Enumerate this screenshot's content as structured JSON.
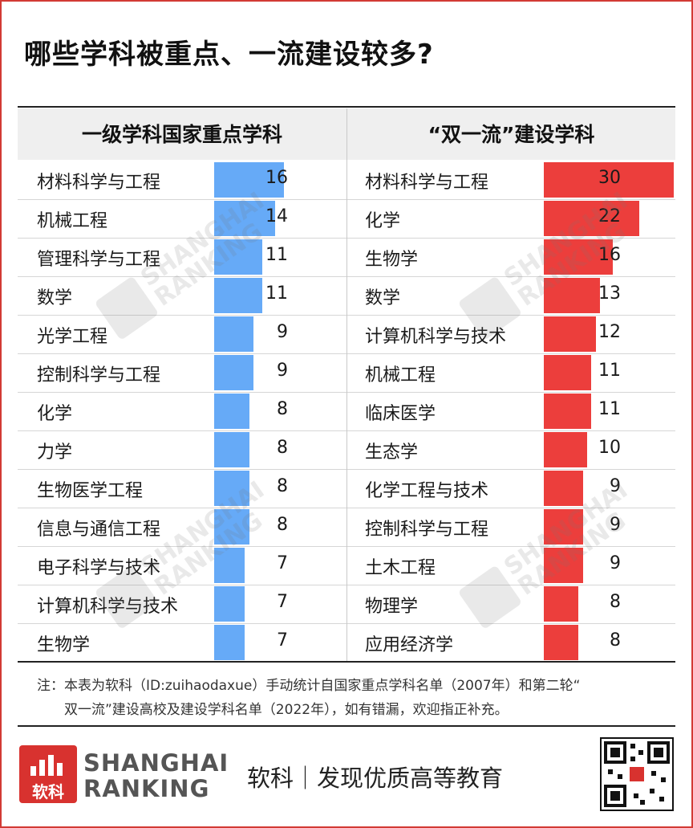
{
  "title": "哪些学科被重点、一流建设较多?",
  "colors": {
    "left_bar": "#66aaf7",
    "right_bar": "#ec3e3c",
    "brand": "#d8322f"
  },
  "chart_data": [
    {
      "type": "bar",
      "orientation": "horizontal",
      "title": "一级学科国家重点学科",
      "categories": [
        "材料科学与工程",
        "机械工程",
        "管理科学与工程",
        "数学",
        "光学工程",
        "控制科学与工程",
        "化学",
        "力学",
        "生物医学工程",
        "信息与通信工程",
        "电子科学与技术",
        "计算机科学与技术",
        "生物学"
      ],
      "values": [
        16,
        14,
        11,
        11,
        9,
        9,
        8,
        8,
        8,
        8,
        7,
        7,
        7
      ]
    },
    {
      "type": "bar",
      "orientation": "horizontal",
      "title": "“双一流”建设学科",
      "categories": [
        "材料科学与工程",
        "化学",
        "生物学",
        "数学",
        "计算机科学与技术",
        "机械工程",
        "临床医学",
        "生态学",
        "化学工程与技术",
        "控制科学与工程",
        "土木工程",
        "物理学",
        "应用经济学"
      ],
      "values": [
        30,
        22,
        16,
        13,
        12,
        11,
        11,
        10,
        9,
        9,
        9,
        8,
        8
      ]
    }
  ],
  "note": {
    "line1": "注：本表为软科（ID:zuihaodaxue）手动统计自国家重点学科名单（2007年）和第二轮“",
    "line2": "双一流”建设高校及建设学科名单（2022年），如有错漏，欢迎指正补充。"
  },
  "watermark": {
    "line1": "SHANGHAI",
    "line2": "RANKING"
  },
  "footer": {
    "logo_cn": "软科",
    "brand_line1": "SHANGHAI",
    "brand_line2": "RANKING",
    "slogan": "软科｜发现优质高等教育",
    "qr_icon": "qr-code-icon"
  }
}
